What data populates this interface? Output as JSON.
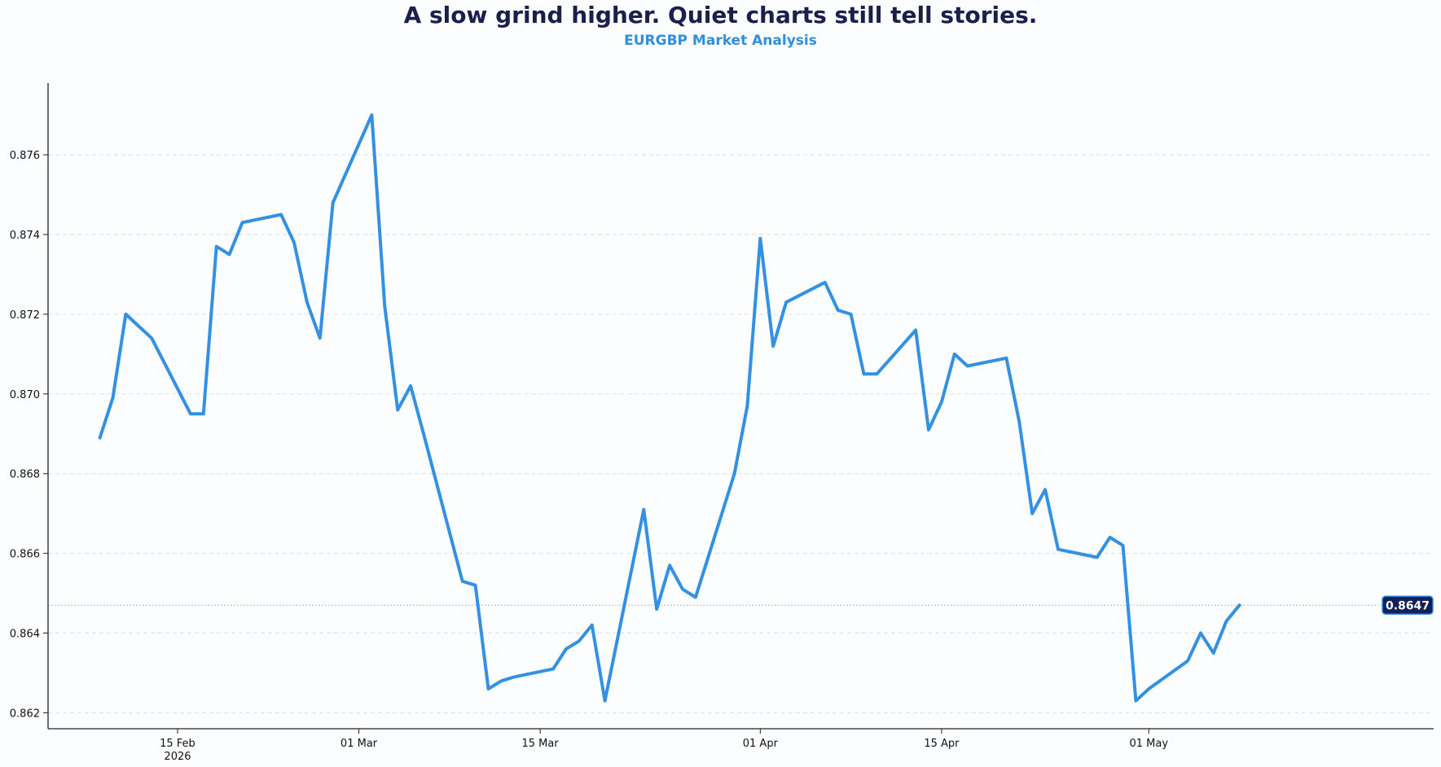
{
  "header": {
    "title": "A slow grind higher. Quiet charts still tell stories.",
    "subtitle": "EURGBP Market Analysis"
  },
  "colors": {
    "line": "#3391e3",
    "title": "#1a1f4e",
    "subtitle": "#2f8fdf",
    "badge_bg": "#14205a",
    "grid": "#d9dde3"
  },
  "chart_data": {
    "type": "line",
    "title": "A slow grind higher. Quiet charts still tell stories.",
    "subtitle": "EURGBP Market Analysis",
    "xlabel": "",
    "ylabel": "",
    "xlim": [
      "2026-02-05",
      "2026-05-23"
    ],
    "ylim": [
      0.8616,
      0.8778
    ],
    "grid": "horizontal dashed",
    "x_ticks": [
      {
        "date": "2026-02-15",
        "label": "15 Feb",
        "sublabel": "2026"
      },
      {
        "date": "2026-03-01",
        "label": "01 Mar",
        "sublabel": ""
      },
      {
        "date": "2026-03-15",
        "label": "15 Mar",
        "sublabel": ""
      },
      {
        "date": "2026-04-01",
        "label": "01 Apr",
        "sublabel": ""
      },
      {
        "date": "2026-04-15",
        "label": "15 Apr",
        "sublabel": ""
      },
      {
        "date": "2026-05-01",
        "label": "01 May",
        "sublabel": ""
      }
    ],
    "y_ticks": [
      {
        "value": 0.862,
        "label": "0.862"
      },
      {
        "value": 0.864,
        "label": "0.864"
      },
      {
        "value": 0.866,
        "label": "0.866"
      },
      {
        "value": 0.868,
        "label": "0.868"
      },
      {
        "value": 0.87,
        "label": "0.870"
      },
      {
        "value": 0.872,
        "label": "0.872"
      },
      {
        "value": 0.874,
        "label": "0.874"
      },
      {
        "value": 0.876,
        "label": "0.876"
      }
    ],
    "last_value": {
      "value": 0.8647,
      "label": "0.8647"
    },
    "series": [
      {
        "x": [
          "2026-02-09",
          "2026-02-10",
          "2026-02-11",
          "2026-02-12",
          "2026-02-13",
          "2026-02-16",
          "2026-02-17",
          "2026-02-18",
          "2026-02-19",
          "2026-02-20",
          "2026-02-23",
          "2026-02-24",
          "2026-02-25",
          "2026-02-26",
          "2026-02-27",
          "2026-03-02",
          "2026-03-03",
          "2026-03-04",
          "2026-03-05",
          "2026-03-06",
          "2026-03-09",
          "2026-03-10",
          "2026-03-11",
          "2026-03-12",
          "2026-03-13",
          "2026-03-16",
          "2026-03-17",
          "2026-03-18",
          "2026-03-19",
          "2026-03-20",
          "2026-03-23",
          "2026-03-24",
          "2026-03-25",
          "2026-03-26",
          "2026-03-27",
          "2026-03-30",
          "2026-03-31",
          "2026-04-01",
          "2026-04-02",
          "2026-04-03",
          "2026-04-06",
          "2026-04-07",
          "2026-04-08",
          "2026-04-09",
          "2026-04-10",
          "2026-04-13",
          "2026-04-14",
          "2026-04-15",
          "2026-04-16",
          "2026-04-17",
          "2026-04-20",
          "2026-04-21",
          "2026-04-22",
          "2026-04-23",
          "2026-04-24",
          "2026-04-27",
          "2026-04-28",
          "2026-04-29",
          "2026-04-30",
          "2026-05-01",
          "2026-05-04",
          "2026-05-05",
          "2026-05-06",
          "2026-05-07",
          "2026-05-08"
        ],
        "values": [
          0.8689,
          0.8699,
          0.872,
          0.8717,
          0.8714,
          0.8695,
          0.8695,
          0.8737,
          0.8735,
          0.8743,
          0.8745,
          0.8738,
          0.8723,
          0.8714,
          0.8748,
          0.877,
          0.8722,
          0.8696,
          0.8702,
          0.869,
          0.8653,
          0.8652,
          0.8626,
          0.8628,
          0.8629,
          0.8631,
          0.8636,
          0.8638,
          0.8642,
          0.8623,
          0.8671,
          0.8646,
          0.8657,
          0.8651,
          0.8649,
          0.868,
          0.8697,
          0.8739,
          0.8712,
          0.8723,
          0.8728,
          0.8721,
          0.872,
          0.8705,
          0.8705,
          0.8716,
          0.8691,
          0.8698,
          0.871,
          0.8707,
          0.8709,
          0.8693,
          0.867,
          0.8676,
          0.8661,
          0.8659,
          0.8664,
          0.8662,
          0.8623,
          0.8626,
          0.8633,
          0.864,
          0.8635,
          0.8643,
          0.8647
        ]
      }
    ]
  }
}
